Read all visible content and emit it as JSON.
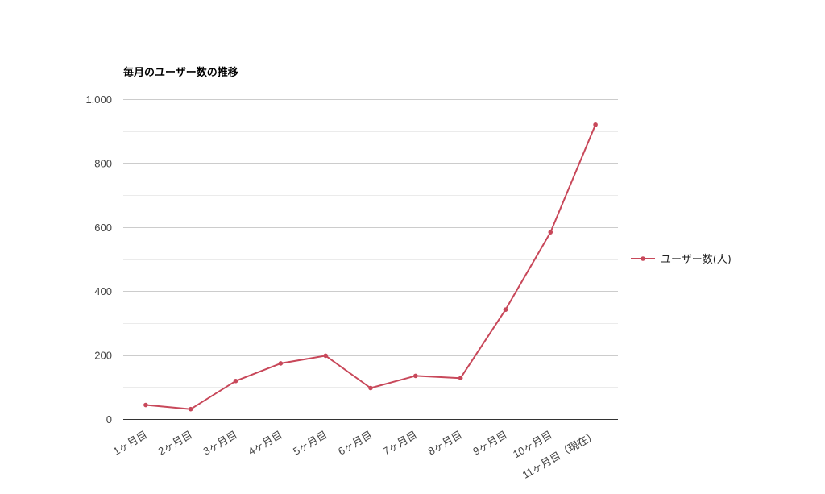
{
  "chart_data": {
    "type": "line",
    "title": "毎月のユーザー数の推移",
    "xlabel": "",
    "ylabel": "",
    "categories": [
      "1ヶ月目",
      "2ヶ月目",
      "3ヶ月目",
      "4ヶ月目",
      "5ヶ月目",
      "6ヶ月目",
      "7ヶ月目",
      "8ヶ月目",
      "9ヶ月目",
      "10ヶ月目",
      "11ヶ月目（現在）"
    ],
    "series": [
      {
        "name": "ユーザー数(人)",
        "values": [
          44,
          31,
          119,
          174,
          198,
          97,
          135,
          128,
          342,
          584,
          920
        ],
        "color": "#c8485a"
      }
    ],
    "ylim": [
      0,
      1000
    ],
    "yticks": [
      0,
      200,
      400,
      600,
      800,
      1000
    ],
    "ytick_labels": [
      "0",
      "200",
      "400",
      "600",
      "800",
      "1,000"
    ],
    "grid": true,
    "legend_position": "right"
  }
}
